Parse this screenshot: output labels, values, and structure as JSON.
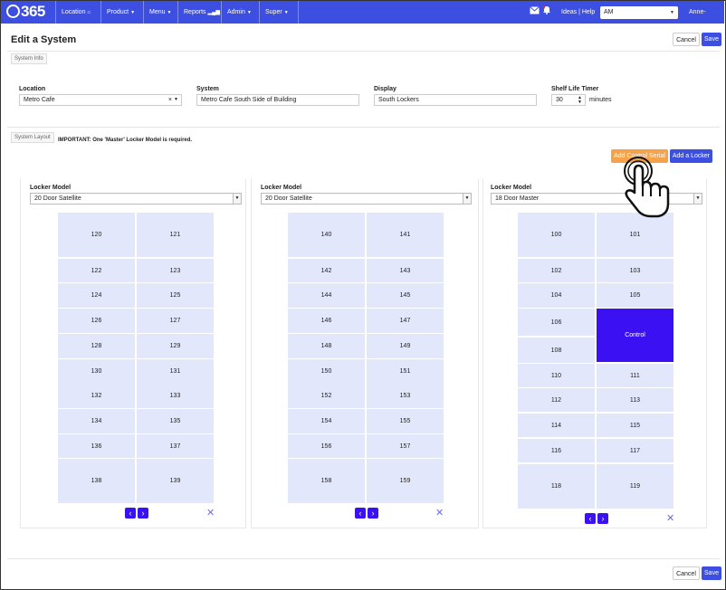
{
  "nav": {
    "logo": "365",
    "items": [
      {
        "label": "Location",
        "suffix": "🏠"
      },
      {
        "label": "Product",
        "suffix": "▾"
      },
      {
        "label": "Menu",
        "suffix": "▾"
      },
      {
        "label": "Reports",
        "suffix": "📶"
      },
      {
        "label": "Admin",
        "suffix": "▾"
      },
      {
        "label": "Super",
        "suffix": "▾"
      }
    ],
    "ideas_help": "Ideas | Help",
    "operator_select": "AM",
    "user": "Anne-Marie",
    "icons": [
      "mail-icon",
      "bell-icon"
    ]
  },
  "page": {
    "title": "Edit a System",
    "cancel": "Cancel",
    "save": "Save"
  },
  "system_info": {
    "tag": "System Info",
    "location_label": "Location",
    "location_value": "Metro Cafe",
    "system_label": "System",
    "system_value": "Metro Cafe South Side of Building",
    "display_label": "Display",
    "display_value": "South Lockers",
    "shelf_label": "Shelf Life Timer",
    "shelf_value": "30",
    "shelf_unit": "minutes"
  },
  "layout": {
    "tag": "System Layout",
    "important": "IMPORTANT: One 'Master' Locker Model is required.",
    "add_control_serial": "Add Control Serial",
    "add_locker": "Add a Locker"
  },
  "lockers": [
    {
      "label": "Locker Model",
      "model": "20 Door Satellite",
      "left": [
        "120",
        "122",
        "124",
        "126",
        "128",
        "130",
        "132",
        "134",
        "136",
        "138"
      ],
      "right": [
        "121",
        "123",
        "125",
        "127",
        "129",
        "131",
        "133",
        "135",
        "137",
        "139"
      ]
    },
    {
      "label": "Locker Model",
      "model": "20 Door Satellite",
      "left": [
        "140",
        "142",
        "144",
        "146",
        "148",
        "150",
        "152",
        "154",
        "156",
        "158"
      ],
      "right": [
        "141",
        "143",
        "145",
        "147",
        "149",
        "151",
        "153",
        "155",
        "157",
        "159"
      ]
    },
    {
      "label": "Locker Model",
      "model": "18 Door Master",
      "left": [
        "100",
        "102",
        "104",
        "106",
        "108",
        "110",
        "112",
        "114",
        "116",
        "118"
      ],
      "right": [
        "101",
        "103",
        "105",
        "Control",
        "111",
        "113",
        "115",
        "117",
        "119"
      ]
    }
  ],
  "colors": {
    "navbar": "#3d4fe0",
    "door": "#e3e7fb",
    "control_door": "#3b10f2",
    "add_control_serial": "#f6a24b"
  }
}
